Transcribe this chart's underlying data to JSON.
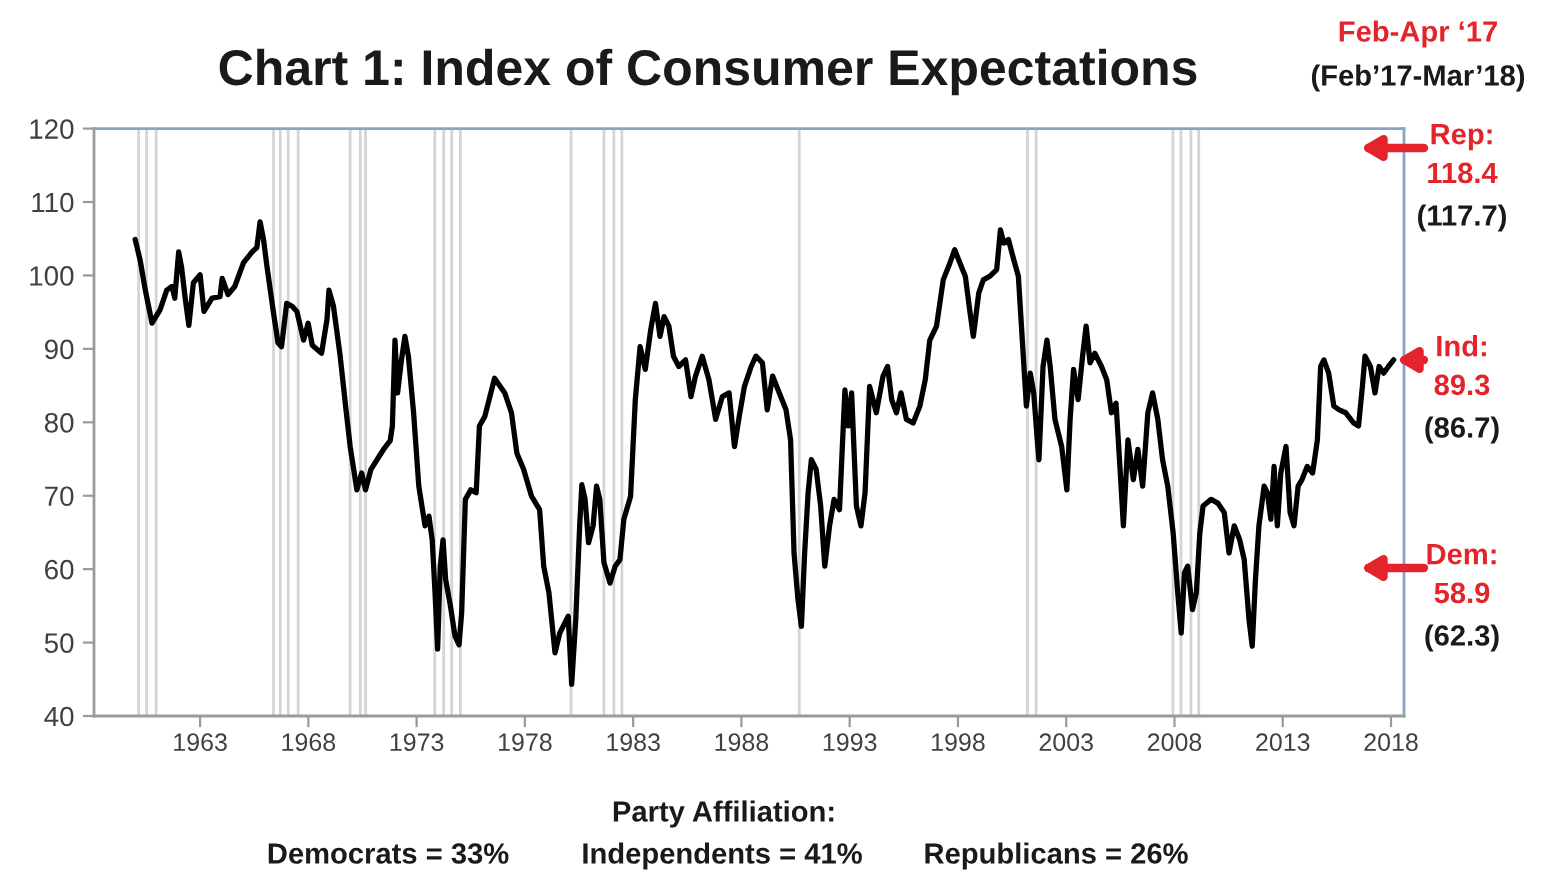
{
  "chart_data": {
    "type": "line",
    "title": "Chart 1: Index of Consumer Expectations",
    "x": [
      1960.0,
      1960.23,
      1960.47,
      1960.78,
      1961.15,
      1961.46,
      1961.7,
      1961.83,
      1962.01,
      1962.14,
      1962.32,
      1962.48,
      1962.69,
      1963.0,
      1963.18,
      1963.55,
      1963.92,
      1964.02,
      1964.29,
      1964.6,
      1965.0,
      1965.4,
      1965.62,
      1965.77,
      1965.93,
      1966.08,
      1966.39,
      1966.6,
      1966.76,
      1967.0,
      1967.25,
      1967.47,
      1967.78,
      1967.99,
      1968.18,
      1968.61,
      1968.86,
      1968.95,
      1969.16,
      1969.47,
      1969.72,
      1969.93,
      1970.24,
      1970.46,
      1970.64,
      1970.89,
      1971.17,
      1971.47,
      1971.78,
      1971.88,
      1972.0,
      1972.12,
      1972.3,
      1972.46,
      1972.62,
      1972.86,
      1973.1,
      1973.39,
      1973.57,
      1973.72,
      1973.85,
      1973.97,
      1974.09,
      1974.22,
      1974.34,
      1974.56,
      1974.77,
      1974.96,
      1975.08,
      1975.25,
      1975.5,
      1975.75,
      1975.9,
      1976.15,
      1976.6,
      1977.07,
      1977.38,
      1977.63,
      1977.94,
      1978.31,
      1978.68,
      1978.87,
      1979.11,
      1979.39,
      1979.61,
      1979.85,
      1980.0,
      1980.16,
      1980.35,
      1980.53,
      1980.63,
      1980.78,
      1980.94,
      1981.15,
      1981.31,
      1981.46,
      1981.65,
      1981.93,
      1982.17,
      1982.39,
      1982.57,
      1982.88,
      1983.1,
      1983.32,
      1983.56,
      1983.81,
      1984.03,
      1984.24,
      1984.43,
      1984.65,
      1984.86,
      1985.11,
      1985.42,
      1985.67,
      1985.88,
      1986.19,
      1986.5,
      1986.81,
      1987.12,
      1987.43,
      1987.68,
      1987.9,
      1988.14,
      1988.45,
      1988.67,
      1988.97,
      1989.19,
      1989.44,
      1989.75,
      1990.06,
      1990.27,
      1990.43,
      1990.61,
      1990.77,
      1990.92,
      1991.08,
      1991.23,
      1991.45,
      1991.66,
      1991.85,
      1992.07,
      1992.28,
      1992.53,
      1992.78,
      1992.93,
      1993.09,
      1993.31,
      1993.52,
      1993.71,
      1993.92,
      1994.23,
      1994.54,
      1994.75,
      1994.94,
      1995.16,
      1995.37,
      1995.62,
      1995.93,
      1996.24,
      1996.49,
      1996.7,
      1997.01,
      1997.32,
      1997.63,
      1997.85,
      1998.09,
      1998.34,
      1998.56,
      1998.71,
      1998.96,
      1999.17,
      1999.48,
      1999.79,
      1999.96,
      2000.12,
      2000.33,
      2000.58,
      2000.79,
      2001.01,
      2001.16,
      2001.34,
      2001.5,
      2001.65,
      2001.74,
      2001.93,
      2002.11,
      2002.26,
      2002.48,
      2002.79,
      2003.03,
      2003.18,
      2003.34,
      2003.55,
      2003.77,
      2003.92,
      2004.1,
      2004.32,
      2004.63,
      2004.87,
      2005.09,
      2005.3,
      2005.48,
      2005.64,
      2005.85,
      2006.1,
      2006.31,
      2006.53,
      2006.77,
      2006.99,
      2007.23,
      2007.45,
      2007.69,
      2007.94,
      2008.15,
      2008.31,
      2008.46,
      2008.61,
      2008.83,
      2009.01,
      2009.17,
      2009.32,
      2009.69,
      2010.0,
      2010.3,
      2010.52,
      2010.76,
      2011.01,
      2011.22,
      2011.44,
      2011.59,
      2011.74,
      2011.9,
      2012.14,
      2012.29,
      2012.45,
      2012.6,
      2012.75,
      2012.91,
      2013.15,
      2013.34,
      2013.52,
      2013.71,
      2013.89,
      2014.13,
      2014.38,
      2014.6,
      2014.75,
      2014.9,
      2015.12,
      2015.36,
      2015.61,
      2015.91,
      2016.28,
      2016.5,
      2016.68,
      2016.8,
      2017.05,
      2017.26,
      2017.45,
      2017.66,
      2017.88,
      2018.12
    ],
    "series": [
      {
        "color": "#000000",
        "values": [
          104.9,
          102.1,
          98.0,
          93.5,
          95.3,
          98.0,
          98.5,
          96.9,
          103.2,
          101.2,
          96.7,
          93.2,
          99.0,
          100.1,
          95.1,
          96.9,
          97.1,
          99.6,
          97.4,
          98.5,
          101.7,
          103.2,
          103.8,
          107.3,
          104.9,
          101.4,
          94.9,
          90.8,
          90.3,
          96.2,
          95.8,
          95.1,
          91.2,
          93.5,
          90.5,
          89.4,
          94.0,
          98.0,
          95.8,
          89.0,
          82.2,
          76.7,
          70.8,
          73.1,
          70.8,
          73.6,
          74.9,
          76.3,
          77.5,
          79.5,
          91.2,
          84.0,
          88.5,
          91.7,
          89.0,
          81.3,
          71.3,
          65.9,
          67.2,
          64.0,
          56.8,
          49.1,
          60.4,
          64.0,
          58.6,
          55.0,
          50.9,
          49.7,
          54.1,
          69.5,
          70.8,
          70.4,
          79.5,
          80.8,
          86.0,
          84.0,
          81.3,
          75.8,
          73.6,
          69.9,
          68.1,
          60.4,
          56.8,
          48.6,
          51.3,
          52.7,
          53.6,
          44.3,
          53.2,
          65.9,
          71.5,
          69.5,
          63.6,
          65.9,
          71.3,
          69.5,
          60.9,
          58.1,
          60.4,
          61.3,
          66.8,
          69.9,
          83.1,
          90.3,
          87.2,
          92.6,
          96.2,
          91.7,
          94.4,
          93.1,
          89.0,
          87.6,
          88.5,
          83.5,
          86.3,
          89.0,
          85.8,
          80.4,
          83.5,
          84.0,
          76.7,
          80.8,
          84.9,
          87.6,
          89.0,
          88.1,
          81.7,
          86.3,
          84.0,
          81.7,
          77.6,
          62.2,
          55.9,
          52.2,
          62.2,
          70.4,
          74.9,
          73.6,
          68.6,
          60.4,
          65.9,
          69.5,
          68.1,
          84.4,
          79.5,
          84.0,
          68.6,
          65.9,
          70.4,
          84.9,
          81.3,
          86.3,
          87.6,
          83.1,
          81.3,
          84.0,
          80.4,
          79.9,
          82.2,
          85.8,
          91.2,
          93.1,
          99.4,
          101.7,
          103.5,
          101.7,
          99.9,
          94.9,
          91.7,
          97.6,
          99.4,
          99.9,
          100.8,
          106.2,
          104.4,
          104.9,
          102.1,
          99.9,
          89.4,
          82.2,
          86.7,
          84.0,
          78.1,
          74.9,
          87.6,
          91.2,
          87.6,
          80.4,
          76.7,
          70.8,
          80.4,
          87.2,
          83.1,
          89.4,
          93.1,
          88.1,
          89.4,
          87.6,
          85.8,
          81.3,
          82.6,
          74.0,
          65.9,
          77.6,
          72.2,
          76.3,
          71.3,
          81.3,
          84.0,
          80.4,
          74.9,
          71.3,
          64.9,
          56.8,
          51.3,
          59.5,
          60.4,
          54.5,
          56.8,
          64.9,
          68.6,
          69.5,
          69.0,
          67.7,
          62.2,
          65.9,
          64.0,
          61.3,
          53.2,
          49.5,
          58.6,
          65.9,
          71.3,
          70.4,
          66.8,
          74.0,
          65.9,
          73.1,
          76.7,
          67.7,
          65.9,
          71.3,
          72.2,
          74.0,
          73.1,
          77.6,
          87.6,
          88.5,
          86.7,
          82.2,
          81.7,
          81.3,
          79.9,
          79.5,
          84.9,
          89.0,
          87.6,
          84.0,
          87.6,
          86.7,
          87.6,
          88.5
        ]
      }
    ],
    "xlim": [
      1958.1,
      2018.6
    ],
    "xticks": [
      1963,
      1968,
      1973,
      1978,
      1983,
      1988,
      1993,
      1998,
      2003,
      2008,
      2013,
      2018
    ],
    "ylim": [
      40,
      120
    ],
    "yticks": [
      40,
      50,
      60,
      70,
      80,
      90,
      100,
      110,
      120
    ],
    "ref_lines": [
      {
        "axis": "x",
        "value": 1960.16,
        "color": "#d4d4d4"
      },
      {
        "axis": "x",
        "value": 1960.53,
        "color": "#d4d4d4"
      },
      {
        "axis": "x",
        "value": 1960.97,
        "color": "#d4d4d4"
      },
      {
        "axis": "x",
        "value": 1966.39,
        "color": "#d4d4d4"
      },
      {
        "axis": "x",
        "value": 1966.7,
        "color": "#d4d4d4"
      },
      {
        "axis": "x",
        "value": 1967.07,
        "color": "#d4d4d4"
      },
      {
        "axis": "x",
        "value": 1967.53,
        "color": "#d4d4d4"
      },
      {
        "axis": "x",
        "value": 1969.93,
        "color": "#d4d4d4"
      },
      {
        "axis": "x",
        "value": 1970.4,
        "color": "#d4d4d4"
      },
      {
        "axis": "x",
        "value": 1970.64,
        "color": "#d4d4d4"
      },
      {
        "axis": "x",
        "value": 1973.84,
        "color": "#d4d4d4"
      },
      {
        "axis": "x",
        "value": 1974.25,
        "color": "#d4d4d4"
      },
      {
        "axis": "x",
        "value": 1974.62,
        "color": "#d4d4d4"
      },
      {
        "axis": "x",
        "value": 1975.02,
        "color": "#d4d4d4"
      },
      {
        "axis": "x",
        "value": 1980.13,
        "color": "#d4d4d4"
      },
      {
        "axis": "x",
        "value": 1981.65,
        "color": "#d4d4d4"
      },
      {
        "axis": "x",
        "value": 1982.11,
        "color": "#d4d4d4"
      },
      {
        "axis": "x",
        "value": 1982.48,
        "color": "#d4d4d4"
      },
      {
        "axis": "x",
        "value": 1990.67,
        "color": "#d4d4d4"
      },
      {
        "axis": "x",
        "value": 2001.21,
        "color": "#d4d4d4"
      },
      {
        "axis": "x",
        "value": 2001.61,
        "color": "#d4d4d4"
      },
      {
        "axis": "x",
        "value": 2007.93,
        "color": "#d4d4d4"
      },
      {
        "axis": "x",
        "value": 2008.3,
        "color": "#d4d4d4"
      },
      {
        "axis": "x",
        "value": 2008.76,
        "color": "#d4d4d4"
      },
      {
        "axis": "x",
        "value": 2009.12,
        "color": "#d4d4d4"
      }
    ],
    "annotations": [
      "Feb-Apr ‘17",
      "(Feb’17-Mar’18)",
      "Rep:\n118.4",
      "(117.7)",
      "Ind:\n89.3",
      "(86.7)",
      "Dem:\n58.9",
      "(62.3)",
      "Party Affiliation:",
      "Democrats = 33%",
      "Independents = 41%",
      "Republicans = 26%"
    ]
  }
}
